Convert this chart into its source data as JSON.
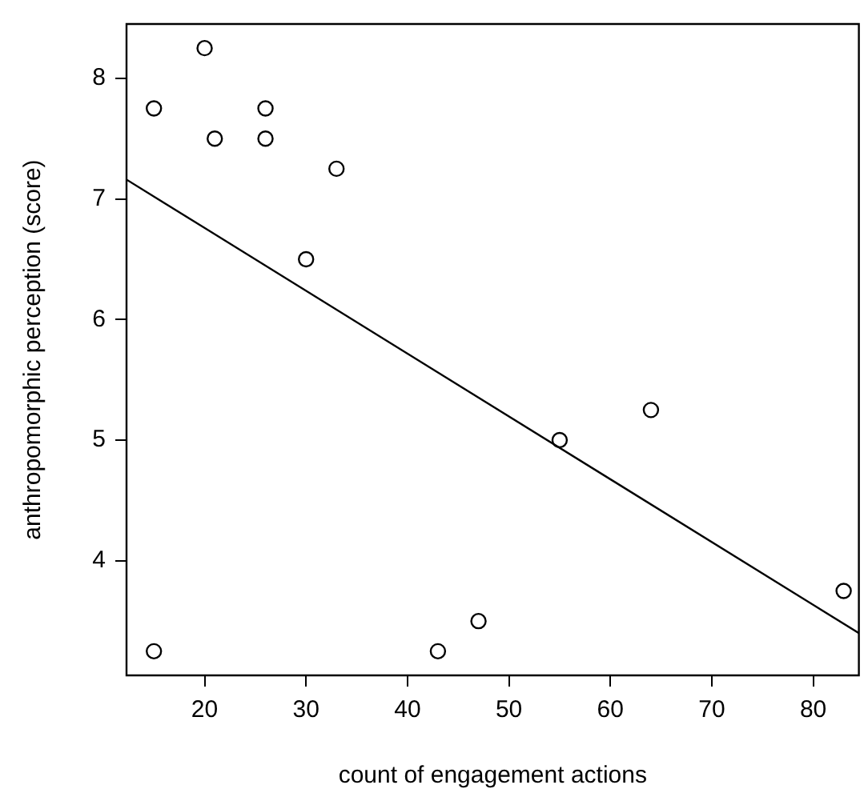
{
  "chart_data": {
    "type": "scatter",
    "xlabel": "count of engagement actions",
    "ylabel": "anthropomorphic perception (score)",
    "xlim": [
      12.3,
      84.5
    ],
    "xticks": [
      20,
      30,
      40,
      50,
      60,
      70,
      80
    ],
    "ylim": [
      3.05,
      8.45
    ],
    "yticks": [
      4,
      5,
      6,
      7,
      8
    ],
    "grid": false,
    "legend": false,
    "marker": "circle",
    "series": [
      {
        "color": "#000000",
        "x": [
          15,
          20,
          21,
          26,
          26,
          33,
          30,
          55,
          64,
          83,
          15,
          43,
          47
        ],
        "values": [
          7.75,
          8.25,
          7.5,
          7.75,
          7.5,
          7.25,
          6.5,
          5,
          5.25,
          3.75,
          3.25,
          3.25,
          3.5
        ]
      },
      {
        "type": "line",
        "color": "#000000",
        "marker": "none",
        "x": [
          12.3,
          84.5
        ],
        "values": [
          7.16,
          3.4
        ]
      }
    ]
  }
}
